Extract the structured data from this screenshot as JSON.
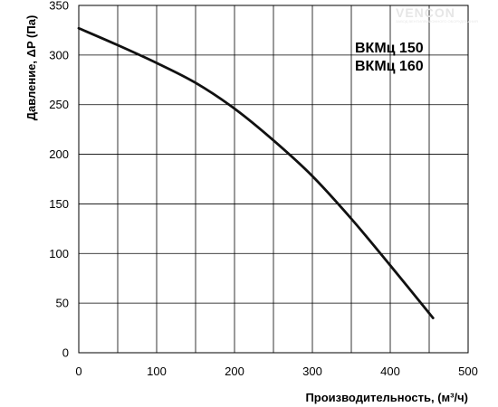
{
  "chart_data": {
    "type": "line",
    "xlabel": "Производительность, (м³/ч)",
    "ylabel": "Давление, ΔP (Па)",
    "xlim": [
      0,
      500
    ],
    "ylim": [
      0,
      350
    ],
    "x_ticks": [
      0,
      100,
      200,
      300,
      400,
      500
    ],
    "y_ticks": [
      0,
      50,
      100,
      150,
      200,
      250,
      300,
      350
    ],
    "x_grid_step": 50,
    "y_grid_step": 50,
    "grid": true,
    "annotations": [
      "ВКМц 150",
      "ВКМц 160"
    ],
    "series": [
      {
        "x": [
          0,
          50,
          100,
          150,
          200,
          250,
          300,
          350,
          400,
          455
        ],
        "y": [
          327,
          310,
          292,
          272,
          246,
          214,
          178,
          135,
          88,
          35
        ]
      }
    ]
  },
  "watermark": {
    "brand": "VENCON",
    "tagline": "ЗАВОД ВЕНТИЛЯЦИОННОГО ОБОРУДОВАНИЯ"
  },
  "colors": {
    "curve": "#111111",
    "grid": "#000000",
    "watermark": "#e6e6e6"
  }
}
